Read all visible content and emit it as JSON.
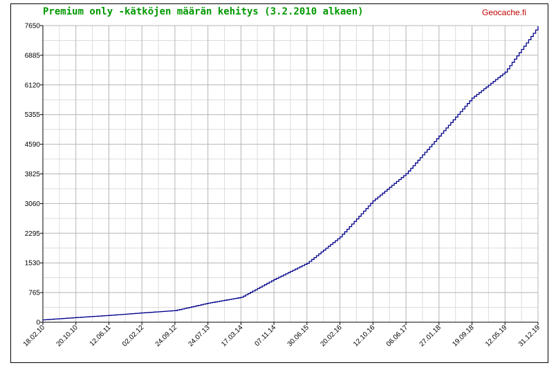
{
  "header": {
    "title": "Premium only -kätköjen määrän kehitys (3.2.2010 alkaen)",
    "site": "Geocache.fi"
  },
  "chart_data": {
    "type": "line",
    "title": "Premium only -kätköjen määrän kehitys (3.2.2010 alkaen)",
    "xlabel": "",
    "ylabel": "",
    "ylim": [
      0,
      7650
    ],
    "yticks": [
      "0",
      "765",
      "1530",
      "2295",
      "3060",
      "3825",
      "4590",
      "5355",
      "6120",
      "6885",
      "7650"
    ],
    "xticks": [
      "18.02.10",
      "20.10.10",
      "12.06.11",
      "02.02.12",
      "24.09.12",
      "24.07.13",
      "17.03.14",
      "07.11.14",
      "30.06.15",
      "20.02.16",
      "12.10.16",
      "06.06.17",
      "27.01.18",
      "19.09.18",
      "12.05.19",
      "31.12.19"
    ],
    "grid": true,
    "line_color": "#00008b",
    "series": [
      {
        "x": [
          "18.02.10",
          "20.10.10",
          "12.06.11",
          "02.02.12",
          "24.09.12",
          "24.07.13",
          "17.03.14",
          "07.11.14",
          "30.06.15",
          "20.02.16",
          "12.10.16",
          "06.06.17",
          "27.01.18",
          "19.09.18",
          "12.05.19",
          "31.12.19"
        ],
        "values": [
          60,
          120,
          175,
          240,
          300,
          490,
          640,
          1100,
          1520,
          2200,
          3130,
          3830,
          4800,
          5780,
          6450,
          7620
        ]
      }
    ]
  }
}
